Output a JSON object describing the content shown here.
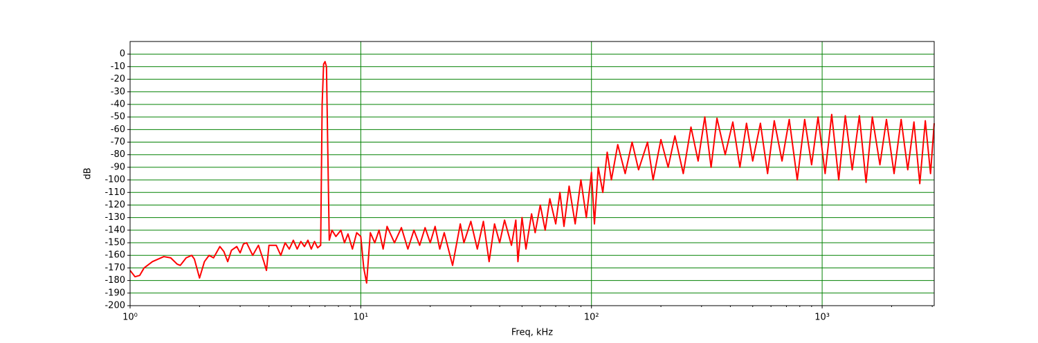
{
  "chart_data": {
    "type": "line",
    "x_label": "Freq, kHz",
    "y_label": "dB",
    "xscale": "log",
    "grid": true,
    "grid_color": "#008000",
    "xlim": [
      1,
      3060
    ],
    "ylim": [
      -200,
      10
    ],
    "xticks": [
      {
        "value": 1,
        "label": "10⁰"
      },
      {
        "value": 10,
        "label": "10¹"
      },
      {
        "value": 100,
        "label": "10²"
      },
      {
        "value": 1000,
        "label": "10³"
      }
    ],
    "xminorticks": [
      2,
      3,
      4,
      5,
      6,
      7,
      8,
      9,
      20,
      30,
      40,
      50,
      60,
      70,
      80,
      90,
      200,
      300,
      400,
      500,
      600,
      700,
      800,
      900,
      2000,
      3000
    ],
    "yticks": [
      -200,
      -190,
      -180,
      -170,
      -160,
      -150,
      -140,
      -130,
      -120,
      -110,
      -100,
      -90,
      -80,
      -70,
      -60,
      -50,
      -40,
      -30,
      -20,
      -10,
      0
    ],
    "x": [
      1.0,
      1.05,
      1.1,
      1.15,
      1.25,
      1.4,
      1.5,
      1.6,
      1.65,
      1.75,
      1.85,
      1.9,
      2.0,
      2.1,
      2.2,
      2.3,
      2.45,
      2.55,
      2.65,
      2.75,
      2.9,
      3.0,
      3.1,
      3.2,
      3.4,
      3.6,
      3.8,
      3.9,
      4.0,
      4.3,
      4.5,
      4.7,
      4.9,
      5.1,
      5.3,
      5.5,
      5.7,
      5.9,
      6.1,
      6.3,
      6.5,
      6.7,
      6.8,
      6.9,
      7.0,
      7.1,
      7.2,
      7.3,
      7.5,
      7.8,
      8.2,
      8.5,
      8.8,
      9.2,
      9.6,
      10,
      10.3,
      10.6,
      11,
      11.5,
      12,
      12.5,
      13,
      14,
      15,
      16,
      17,
      18,
      19,
      20,
      21,
      22,
      23,
      25,
      27,
      28,
      30,
      32,
      34,
      36,
      38,
      40,
      42,
      45,
      47,
      48,
      50,
      52,
      55,
      57,
      60,
      63,
      66,
      70,
      73,
      76,
      80,
      85,
      90,
      95,
      100,
      103,
      107,
      112,
      117,
      122,
      130,
      140,
      150,
      160,
      175,
      185,
      200,
      215,
      230,
      250,
      270,
      290,
      310,
      330,
      350,
      380,
      410,
      440,
      470,
      500,
      540,
      580,
      620,
      670,
      720,
      780,
      840,
      900,
      960,
      1030,
      1100,
      1180,
      1260,
      1350,
      1450,
      1550,
      1650,
      1780,
      1900,
      2050,
      2200,
      2350,
      2500,
      2650,
      2800,
      2950,
      3060
    ],
    "series": [
      {
        "color": "#ff0000",
        "values": [
          -172,
          -177,
          -176,
          -170,
          -165,
          -161,
          -162,
          -167,
          -168,
          -162,
          -160,
          -163,
          -178,
          -165,
          -160,
          -162,
          -153,
          -157,
          -165,
          -156,
          -153,
          -158,
          -151,
          -150,
          -160,
          -152,
          -165,
          -172,
          -152,
          -152,
          -160,
          -150,
          -155,
          -148,
          -155,
          -149,
          -153,
          -148,
          -155,
          -149,
          -154,
          -152,
          -40,
          -8,
          -6,
          -10,
          -80,
          -148,
          -140,
          -145,
          -140,
          -150,
          -143,
          -155,
          -142,
          -145,
          -170,
          -182,
          -142,
          -150,
          -140,
          -155,
          -137,
          -150,
          -138,
          -155,
          -140,
          -152,
          -138,
          -150,
          -137,
          -155,
          -142,
          -168,
          -135,
          -150,
          -133,
          -155,
          -133,
          -165,
          -135,
          -150,
          -132,
          -152,
          -132,
          -165,
          -130,
          -155,
          -127,
          -142,
          -120,
          -140,
          -115,
          -135,
          -110,
          -137,
          -105,
          -135,
          -100,
          -130,
          -94,
          -135,
          -90,
          -110,
          -78,
          -100,
          -72,
          -95,
          -70,
          -92,
          -70,
          -100,
          -68,
          -90,
          -65,
          -95,
          -58,
          -85,
          -50,
          -90,
          -51,
          -80,
          -54,
          -90,
          -55,
          -85,
          -55,
          -95,
          -53,
          -85,
          -52,
          -100,
          -52,
          -88,
          -50,
          -95,
          -48,
          -100,
          -49,
          -92,
          -49,
          -102,
          -50,
          -88,
          -52,
          -95,
          -52,
          -92,
          -54,
          -103,
          -53,
          -95,
          -55
        ]
      }
    ]
  }
}
